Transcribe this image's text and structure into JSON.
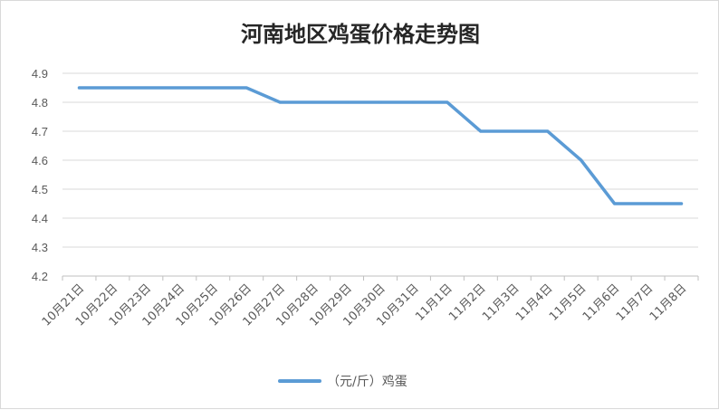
{
  "chart_data": {
    "type": "line",
    "title": "河南地区鸡蛋价格走势图",
    "xlabel": "",
    "ylabel": "",
    "categories": [
      "10月21日",
      "10月22日",
      "10月23日",
      "10月24日",
      "10月25日",
      "10月26日",
      "10月27日",
      "10月28日",
      "10月29日",
      "10月30日",
      "10月31日",
      "11月1日",
      "11月2日",
      "11月3日",
      "11月4日",
      "11月5日",
      "11月6日",
      "11月7日",
      "11月8日"
    ],
    "series": [
      {
        "name": "（元/斤）鸡蛋",
        "color": "#5b9bd5",
        "values": [
          4.85,
          4.85,
          4.85,
          4.85,
          4.85,
          4.85,
          4.8,
          4.8,
          4.8,
          4.8,
          4.8,
          4.8,
          4.7,
          4.7,
          4.7,
          4.6,
          4.45,
          4.45,
          4.45
        ]
      }
    ],
    "ylim": [
      4.2,
      4.9
    ],
    "yticks": [
      "4.2",
      "4.3",
      "4.4",
      "4.5",
      "4.6",
      "4.7",
      "4.8",
      "4.9"
    ],
    "grid": true,
    "legend_position": "bottom"
  }
}
